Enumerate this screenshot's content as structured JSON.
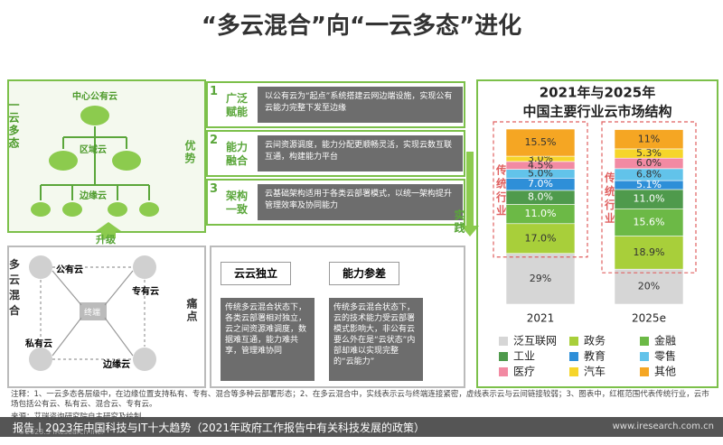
{
  "title": "“多云混合”向“一云多态”进化",
  "left": {
    "one_cloud": "一云多态",
    "central": "中心公有云",
    "regional": "区域云",
    "edge_top": "边缘云",
    "upgrade": "升级",
    "multi_cloud": "多云混合",
    "public": "公有云",
    "dedicated": "专有云",
    "terminal": "终端",
    "private": "私有云",
    "edge_bottom": "边缘云"
  },
  "advantages": {
    "label": "优势",
    "items": [
      {
        "num": "1",
        "title": "广泛赋能",
        "text": "以公有云为“起点”系统搭建云网边端设施，实现公有云能力完整下发至边缘"
      },
      {
        "num": "2",
        "title": "能力融合",
        "text": "云间资源调度，能力分配更顺畅灵活，实现云数互联互通，构建能力平台"
      },
      {
        "num": "3",
        "title": "架构一致",
        "text": "云基础架构适用于各类云部署模式，以统一架构提升管理效率及协同能力"
      }
    ]
  },
  "pain": {
    "label": "痛点",
    "items": [
      {
        "title": "云云独立",
        "text": "传统多云混合状态下，各类云部署相对独立，云之间资源难调度，数据难互通，能力难共享，管理难协同"
      },
      {
        "title": "能力参差",
        "text": "传统多云混合状态下，云的技术能力受云部署模式影响大，非公有云要么外在是“云状态”内部却难以实现完整的“云能力”"
      }
    ]
  },
  "practice": "实践",
  "chart_data": {
    "type": "stacked-bar",
    "title": "2021年与2025年",
    "subtitle": "中国主要行业云市场结构",
    "group_label": "传统行业",
    "categories": [
      "2021",
      "2025e"
    ],
    "series": [
      {
        "name": "泛互联网",
        "color": "#d6d6d6",
        "values": [
          29,
          20
        ],
        "value_labels": [
          "29%",
          "20%"
        ]
      },
      {
        "name": "政务",
        "color": "#a8cf3a",
        "values": [
          17.0,
          18.9
        ],
        "value_labels": [
          "17.0%",
          "18.9%"
        ]
      },
      {
        "name": "金融",
        "color": "#6cb946",
        "values": [
          11.0,
          15.6
        ],
        "value_labels": [
          "11.0%",
          "15.6%"
        ]
      },
      {
        "name": "工业",
        "color": "#4f9a4c",
        "values": [
          8.0,
          11.0
        ],
        "value_labels": [
          "8.0%",
          "11.0%"
        ]
      },
      {
        "name": "教育",
        "color": "#2e8fd8",
        "values": [
          7.0,
          5.1
        ],
        "value_labels": [
          "7.0%",
          "5.1%"
        ]
      },
      {
        "name": "零售",
        "color": "#62c3ea",
        "values": [
          5.0,
          6.8
        ],
        "value_labels": [
          "5.0%",
          "6.8%"
        ]
      },
      {
        "name": "医疗",
        "color": "#f28aa3",
        "values": [
          4.5,
          6.0
        ],
        "value_labels": [
          "4.5%",
          "6.0%"
        ]
      },
      {
        "name": "汽车",
        "color": "#f6d52a",
        "values": [
          3.0,
          5.3
        ],
        "value_labels": [
          "3.0%",
          "5.3%"
        ]
      },
      {
        "name": "其他",
        "color": "#f5a623",
        "values": [
          15.5,
          11
        ],
        "value_labels": [
          "15.5%",
          "11%"
        ]
      }
    ]
  },
  "notes": "注释：1、一云多态各层级中，在边缘位置支持私有、专有、混合等多种云部署形态；2、在多云混合中，实线表示云与终端连接紧密，虚线表示云与云间链接较弱；3、图表中，红框范围代表传统行业，云市场包括公有云、私有云、混合云、专有云。",
  "source": "来源：艾瑞咨询研究院自主研究及绘制。",
  "copyright": "©2023.3 iResearch Inc.",
  "footer": {
    "report": "报告丨2023年中国科技与IT十大趋势（2021年政府工作报告中有关科技发展的政策）",
    "site": "www.iresearch.com.cn"
  }
}
